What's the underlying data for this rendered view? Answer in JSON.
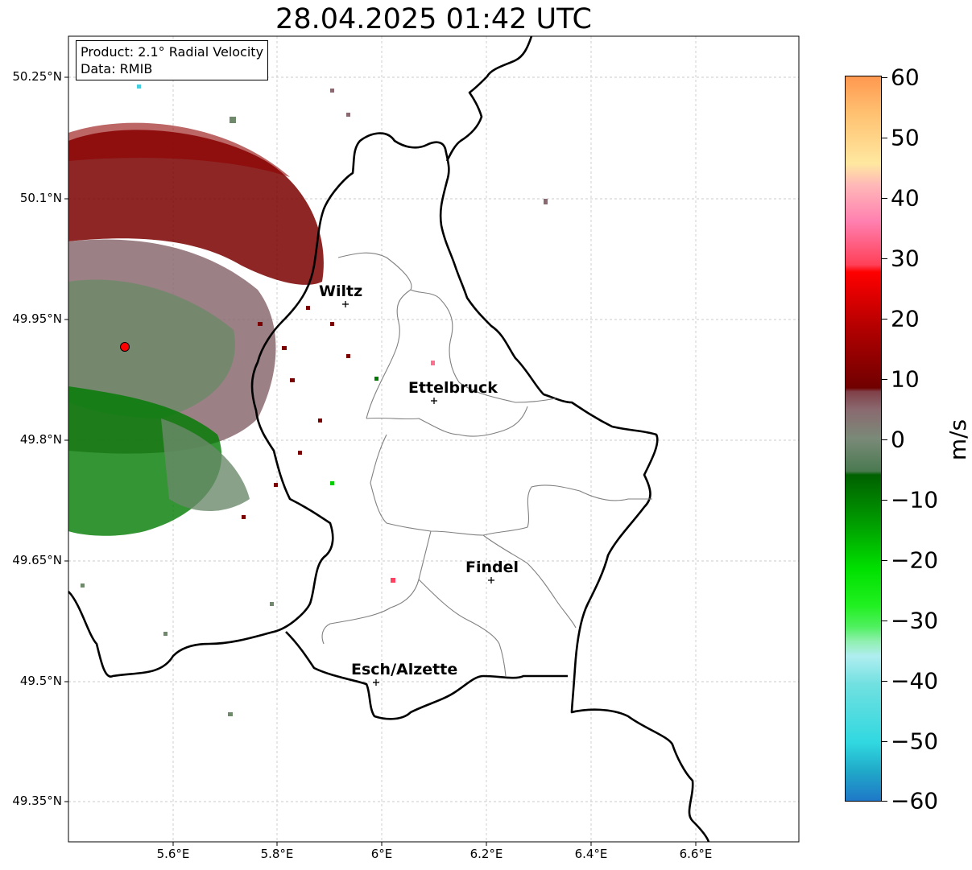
{
  "title": "28.04.2025 01:42 UTC",
  "infobox": {
    "product": "Product: 2.1° Radial Velocity",
    "data": "Data: RMIB"
  },
  "axes": {
    "lat_ticks": [
      "50.25°N",
      "50.1°N",
      "49.95°N",
      "49.8°N",
      "49.65°N",
      "49.5°N",
      "49.35°N"
    ],
    "lon_ticks": [
      "5.6°E",
      "5.8°E",
      "6°E",
      "6.2°E",
      "6.4°E",
      "6.6°E"
    ],
    "grid": true
  },
  "cities": [
    {
      "name": "Wiltz"
    },
    {
      "name": "Ettelbruck"
    },
    {
      "name": "Findel"
    },
    {
      "name": "Esch/Alzette"
    }
  ],
  "colorbar": {
    "label": "m/s",
    "ticks": [
      "60",
      "50",
      "40",
      "30",
      "20",
      "10",
      "0",
      "−10",
      "−20",
      "−30",
      "−40",
      "−50",
      "−60"
    ],
    "range": [
      -60,
      60
    ]
  },
  "colors": {
    "strong_receding": "#7a0000",
    "weak_receding": "#8a6a70",
    "weak_approaching": "#6a8a6a",
    "strong_approaching": "#007a00",
    "radar_marker": "#ff0000"
  }
}
